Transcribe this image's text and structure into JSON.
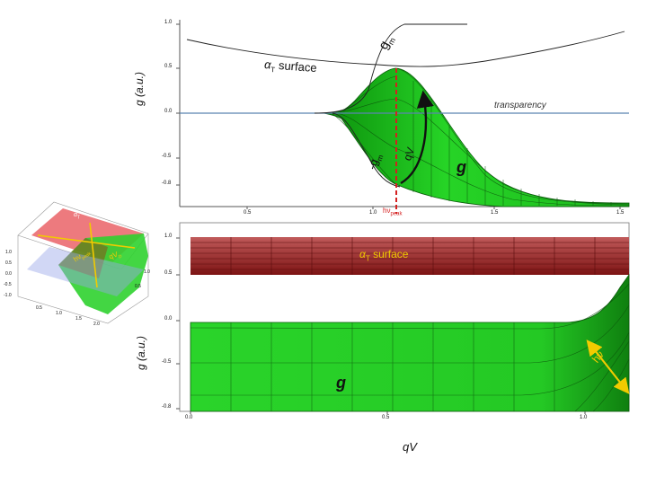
{
  "colors": {
    "green": "#22c722",
    "green_dark": "#0a7a0a",
    "red_band": "#8b1a1a",
    "red_band_light": "#c45454",
    "axis_blue": "#5b84b1",
    "dashed_red": "#d42020",
    "arrow_yellow": "#f1cb00"
  },
  "top_panel": {
    "ylabel": "g (a.u.)",
    "yticks": [
      "1.0",
      "0.5",
      "0.0",
      "-0.5",
      "-0.8"
    ],
    "xticks": [
      "0.5",
      "1.0",
      "1.5"
    ],
    "gm_upper": "g",
    "gm_upper_sub": "m",
    "gm_lower": "-g",
    "gm_lower_sub": "m",
    "alpha_label": "α",
    "alpha_sub": "T",
    "alpha_text": " surface",
    "transparency": "transparency",
    "qv_label": "qV",
    "g_label": "g",
    "h_peak": "hν",
    "h_peak_sub": "peak"
  },
  "bottom_panel": {
    "ylabel": "g (a.u.)",
    "yticks": [
      "1.0",
      "0.5",
      "0.0",
      "-0.5",
      "-0.8"
    ],
    "xticks": [
      "0.0",
      "0.5",
      "1.0"
    ],
    "xlabel": "qV",
    "alpha_label": "α",
    "alpha_sub": "T",
    "alpha_text": " surface",
    "g_label": "g",
    "hv_label": "hν"
  },
  "inset": {
    "alpha_label": "α",
    "alpha_sub": "T",
    "h_label": "hν",
    "h_sub": "peak",
    "qv_label": "qV",
    "qv_sub": "D",
    "yticks": [
      "1.0",
      "0.5",
      "0.0",
      "-0.5",
      "-1.0"
    ],
    "xticks": [
      "0.5",
      "1.0",
      "1.5",
      "2.0",
      "0.5",
      "1.0"
    ]
  }
}
